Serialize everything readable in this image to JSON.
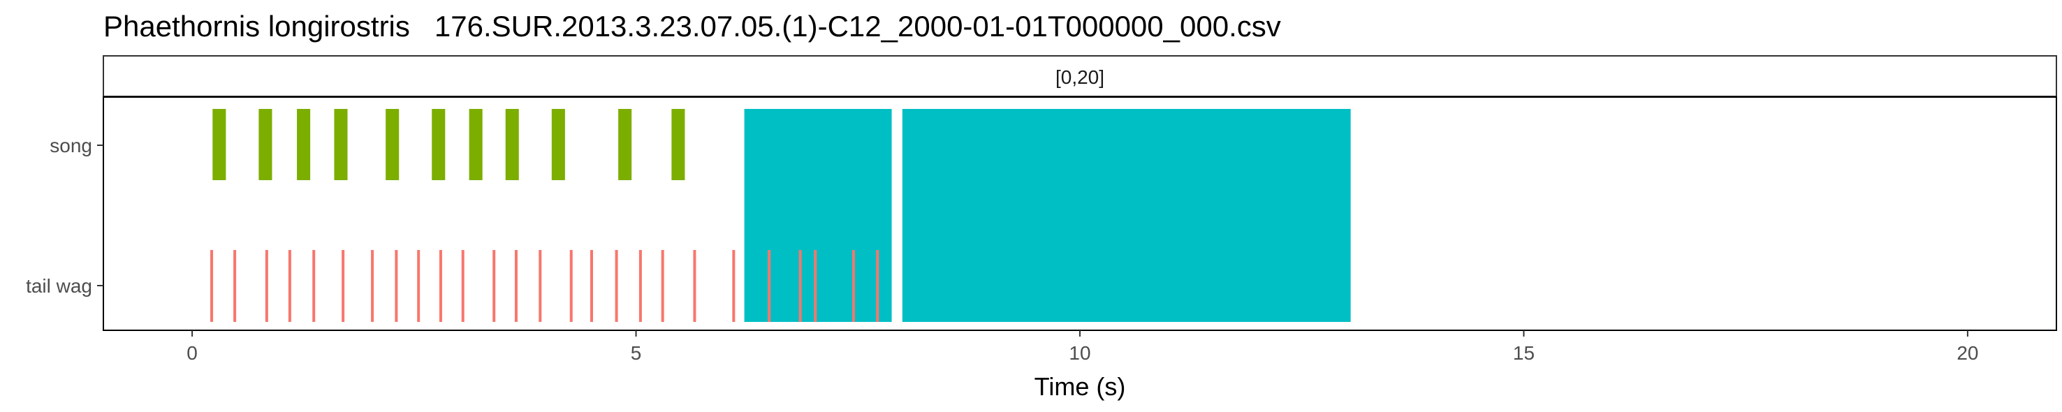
{
  "chart_data": {
    "type": "timeline",
    "title": "Phaethornis longirostris   176.SUR.2013.3.23.07.05.(1)-C12_2000-01-01T000000_000.csv",
    "facet_label": "[0,20]",
    "xlabel": "Time (s)",
    "ylabel": "",
    "xlim": [
      -1,
      21
    ],
    "x_ticks": [
      0,
      5,
      10,
      15,
      20
    ],
    "x_tick_labels": [
      "0",
      "5",
      "10",
      "15",
      "20"
    ],
    "grid": false,
    "legend": "none",
    "rows": [
      "song",
      "tail wag"
    ],
    "colors": {
      "song": "#7CAE00",
      "tail wag": "#F8766D",
      "highlight": "#00BFC4"
    },
    "highlight_regions": [
      {
        "start": 6.22,
        "end": 7.88
      },
      {
        "start": 8.0,
        "end": 13.05
      }
    ],
    "series": [
      {
        "name": "song",
        "segments": [
          [
            0.23,
            0.38
          ],
          [
            0.75,
            0.9
          ],
          [
            1.18,
            1.33
          ],
          [
            1.6,
            1.75
          ],
          [
            2.18,
            2.33
          ],
          [
            2.7,
            2.85
          ],
          [
            3.12,
            3.27
          ],
          [
            3.53,
            3.68
          ],
          [
            4.05,
            4.2
          ],
          [
            4.8,
            4.95
          ],
          [
            5.4,
            5.55
          ]
        ]
      },
      {
        "name": "tail wag",
        "events": [
          0.22,
          0.48,
          0.84,
          1.1,
          1.37,
          1.7,
          2.03,
          2.3,
          2.55,
          2.8,
          3.05,
          3.4,
          3.65,
          3.92,
          4.27,
          4.5,
          4.78,
          5.05,
          5.3,
          5.66,
          6.1,
          6.5,
          6.85,
          7.02,
          7.45,
          7.72
        ]
      }
    ]
  }
}
